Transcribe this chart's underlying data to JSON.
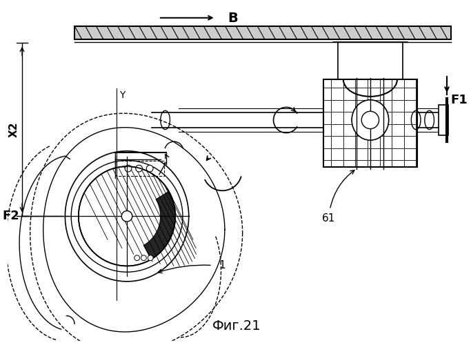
{
  "title": "Фиг.21",
  "bg_color": "#ffffff",
  "line_color": "#000000",
  "fig_width": 6.83,
  "fig_height": 5.0,
  "dpi": 100,
  "label_B": "В",
  "label_F1": "F1",
  "label_F2": "F2",
  "label_X2": "X2",
  "label_Y": "Y",
  "label_61": "61",
  "label_1": "1"
}
